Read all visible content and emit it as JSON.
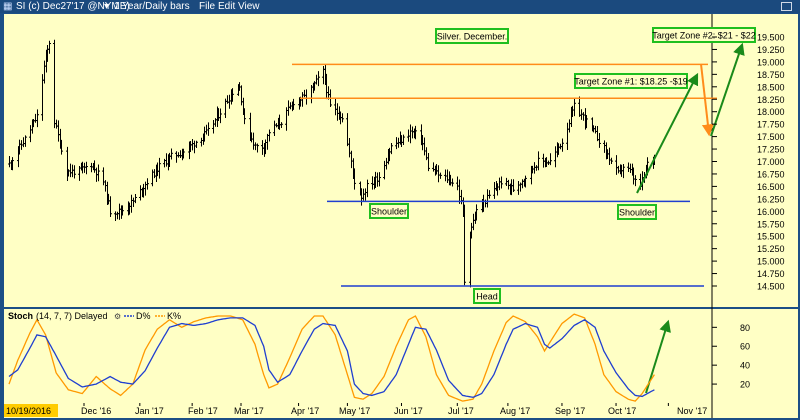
{
  "window": {
    "symbol_icon": "grid-icon",
    "title": "SI  (c) Dec27'17 @NYME)",
    "dropdown_icon": "chevron-down-icon",
    "period": "1 Year/Daily bars",
    "menu": [
      "File",
      "Edit",
      "View"
    ],
    "window_button_icon": "window-restore-icon"
  },
  "colors": {
    "panel_bg": "#ffffc5",
    "frame": "#1c4f86",
    "bars": "#000000",
    "resistance": "#ff8c1a",
    "support": "#1f3fd0",
    "arrow_green": "#1a8a1a",
    "label_border": "#1fbf1f",
    "stoch_d": "#1f3fd0",
    "stoch_k": "#ff9900",
    "date_highlight": "#ffcc00"
  },
  "chart_data": [
    {
      "type": "candlestick",
      "description": "Silver December futures daily bars with head-and-shoulders annotation",
      "y_tick_labels": [
        "14.500",
        "14.750",
        "15.000",
        "15.250",
        "15.500",
        "15.750",
        "16.000",
        "16.250",
        "16.500",
        "16.750",
        "17.000",
        "17.250",
        "17.500",
        "17.750",
        "18.000",
        "18.250",
        "18.500",
        "18.750",
        "19.000",
        "19.250",
        "19.500"
      ],
      "ylim": [
        14.35,
        19.7
      ],
      "x_tick_labels": [
        "10/19/2016",
        "Dec '16",
        "Jan '17",
        "Feb '17",
        "Mar '17",
        "Apr '17",
        "May '17",
        "Jun '17",
        "Jul '17",
        "Aug '17",
        "Sep '17",
        "Oct '17",
        "Nov '17"
      ],
      "anchors": [
        [
          "2016-10-19",
          16.95
        ],
        [
          "2016-10-28",
          17.45
        ],
        [
          "2016-11-04",
          17.9
        ],
        [
          "2016-11-08",
          18.9
        ],
        [
          "2016-11-11",
          19.4
        ],
        [
          "2016-11-14",
          17.8
        ],
        [
          "2016-11-21",
          16.8
        ],
        [
          "2016-11-28",
          16.8
        ],
        [
          "2016-12-05",
          16.95
        ],
        [
          "2016-12-12",
          16.6
        ],
        [
          "2016-12-16",
          16.0
        ],
        [
          "2016-12-22",
          16.0
        ],
        [
          "2016-12-29",
          16.2
        ],
        [
          "2017-01-06",
          16.6
        ],
        [
          "2017-01-13",
          16.9
        ],
        [
          "2017-01-20",
          17.1
        ],
        [
          "2017-01-27",
          17.2
        ],
        [
          "2017-02-03",
          17.4
        ],
        [
          "2017-02-10",
          17.6
        ],
        [
          "2017-02-17",
          18.0
        ],
        [
          "2017-02-24",
          18.4
        ],
        [
          "2017-02-28",
          18.5
        ],
        [
          "2017-03-03",
          17.8
        ],
        [
          "2017-03-09",
          17.3
        ],
        [
          "2017-03-14",
          17.3
        ],
        [
          "2017-03-17",
          17.6
        ],
        [
          "2017-03-24",
          17.8
        ],
        [
          "2017-03-31",
          18.2
        ],
        [
          "2017-04-07",
          18.3
        ],
        [
          "2017-04-13",
          18.6
        ],
        [
          "2017-04-17",
          18.8
        ],
        [
          "2017-04-21",
          18.1
        ],
        [
          "2017-04-28",
          17.9
        ],
        [
          "2017-05-05",
          16.6
        ],
        [
          "2017-05-09",
          16.3
        ],
        [
          "2017-05-12",
          16.5
        ],
        [
          "2017-05-19",
          16.7
        ],
        [
          "2017-05-26",
          17.3
        ],
        [
          "2017-06-02",
          17.45
        ],
        [
          "2017-06-06",
          17.6
        ],
        [
          "2017-06-12",
          17.5
        ],
        [
          "2017-06-16",
          16.9
        ],
        [
          "2017-06-23",
          16.7
        ],
        [
          "2017-06-28",
          16.65
        ],
        [
          "2017-07-03",
          16.5
        ],
        [
          "2017-07-06",
          16.0
        ],
        [
          "2017-07-07",
          14.6
        ],
        [
          "2017-07-10",
          15.6
        ],
        [
          "2017-07-14",
          16.0
        ],
        [
          "2017-07-21",
          16.3
        ],
        [
          "2017-07-28",
          16.6
        ],
        [
          "2017-08-04",
          16.45
        ],
        [
          "2017-08-11",
          16.7
        ],
        [
          "2017-08-18",
          17.0
        ],
        [
          "2017-08-25",
          17.0
        ],
        [
          "2017-09-01",
          17.4
        ],
        [
          "2017-09-08",
          18.1
        ],
        [
          "2017-09-13",
          17.9
        ],
        [
          "2017-09-19",
          17.6
        ],
        [
          "2017-09-26",
          17.2
        ],
        [
          "2017-10-03",
          16.75
        ],
        [
          "2017-10-06",
          16.9
        ],
        [
          "2017-10-10",
          16.8
        ],
        [
          "2017-10-13",
          16.6
        ],
        [
          "2017-10-16",
          16.5
        ],
        [
          "2017-10-20",
          16.95
        ],
        [
          "2017-10-24",
          17.1
        ]
      ],
      "horizontal_lines": [
        {
          "role": "resistance-upper",
          "value": 18.95,
          "color": "orange"
        },
        {
          "role": "resistance-lower",
          "value": 18.27,
          "color": "orange"
        },
        {
          "role": "neckline",
          "value": 16.2,
          "color": "blue"
        },
        {
          "role": "head-low",
          "value": 14.5,
          "color": "blue"
        }
      ],
      "annotations": [
        {
          "text": "Silver. December."
        },
        {
          "text": "Target Zone #2: $21 - $22"
        },
        {
          "text": "Target Zone #1: $18.25 -$19"
        },
        {
          "text": "Shoulder"
        },
        {
          "text": "Head"
        },
        {
          "text": "Shoulder"
        }
      ]
    },
    {
      "type": "line",
      "title": "Stoch",
      "params": "(14, 7, 7) Delayed",
      "params_icon": "settings-icon",
      "series": [
        {
          "name": "D%",
          "color": "blue",
          "anchors": [
            [
              "2016-10-19",
              28
            ],
            [
              "2016-10-24",
              35
            ],
            [
              "2016-10-31",
              58
            ],
            [
              "2016-11-04",
              72
            ],
            [
              "2016-11-09",
              70
            ],
            [
              "2016-11-15",
              50
            ],
            [
              "2016-11-22",
              26
            ],
            [
              "2016-11-30",
              17
            ],
            [
              "2016-12-08",
              20
            ],
            [
              "2016-12-16",
              28
            ],
            [
              "2016-12-22",
              22
            ],
            [
              "2016-12-29",
              20
            ],
            [
              "2017-01-05",
              34
            ],
            [
              "2017-01-12",
              58
            ],
            [
              "2017-01-19",
              80
            ],
            [
              "2017-01-26",
              84
            ],
            [
              "2017-02-02",
              82
            ],
            [
              "2017-02-09",
              84
            ],
            [
              "2017-02-16",
              88
            ],
            [
              "2017-02-23",
              90
            ],
            [
              "2017-03-02",
              90
            ],
            [
              "2017-03-09",
              82
            ],
            [
              "2017-03-14",
              60
            ],
            [
              "2017-03-17",
              35
            ],
            [
              "2017-03-22",
              22
            ],
            [
              "2017-03-29",
              30
            ],
            [
              "2017-04-05",
              55
            ],
            [
              "2017-04-12",
              78
            ],
            [
              "2017-04-17",
              84
            ],
            [
              "2017-04-24",
              82
            ],
            [
              "2017-05-01",
              55
            ],
            [
              "2017-05-05",
              20
            ],
            [
              "2017-05-10",
              10
            ],
            [
              "2017-05-15",
              8
            ],
            [
              "2017-05-22",
              12
            ],
            [
              "2017-05-29",
              30
            ],
            [
              "2017-06-05",
              62
            ],
            [
              "2017-06-09",
              80
            ],
            [
              "2017-06-15",
              78
            ],
            [
              "2017-06-21",
              56
            ],
            [
              "2017-06-28",
              24
            ],
            [
              "2017-07-06",
              8
            ],
            [
              "2017-07-12",
              6
            ],
            [
              "2017-07-17",
              10
            ],
            [
              "2017-07-24",
              30
            ],
            [
              "2017-07-31",
              62
            ],
            [
              "2017-08-04",
              78
            ],
            [
              "2017-08-11",
              84
            ],
            [
              "2017-08-18",
              80
            ],
            [
              "2017-08-22",
              62
            ],
            [
              "2017-08-25",
              58
            ],
            [
              "2017-09-01",
              68
            ],
            [
              "2017-09-08",
              82
            ],
            [
              "2017-09-14",
              88
            ],
            [
              "2017-09-20",
              80
            ],
            [
              "2017-09-25",
              55
            ],
            [
              "2017-10-02",
              32
            ],
            [
              "2017-10-09",
              15
            ],
            [
              "2017-10-13",
              8
            ],
            [
              "2017-10-17",
              7
            ],
            [
              "2017-10-24",
              14
            ]
          ]
        },
        {
          "name": "K%",
          "color": "orange",
          "anchors": [
            [
              "2016-10-19",
              20
            ],
            [
              "2016-10-24",
              45
            ],
            [
              "2016-10-31",
              74
            ],
            [
              "2016-11-04",
              88
            ],
            [
              "2016-11-09",
              72
            ],
            [
              "2016-11-15",
              32
            ],
            [
              "2016-11-22",
              14
            ],
            [
              "2016-11-30",
              10
            ],
            [
              "2016-12-08",
              28
            ],
            [
              "2016-12-16",
              15
            ],
            [
              "2016-12-22",
              8
            ],
            [
              "2016-12-29",
              20
            ],
            [
              "2017-01-05",
              56
            ],
            [
              "2017-01-12",
              78
            ],
            [
              "2017-01-19",
              88
            ],
            [
              "2017-01-26",
              80
            ],
            [
              "2017-02-02",
              86
            ],
            [
              "2017-02-09",
              90
            ],
            [
              "2017-02-16",
              92
            ],
            [
              "2017-02-23",
              92
            ],
            [
              "2017-03-02",
              88
            ],
            [
              "2017-03-09",
              62
            ],
            [
              "2017-03-14",
              30
            ],
            [
              "2017-03-17",
              16
            ],
            [
              "2017-03-22",
              20
            ],
            [
              "2017-03-29",
              48
            ],
            [
              "2017-04-05",
              78
            ],
            [
              "2017-04-12",
              92
            ],
            [
              "2017-04-17",
              92
            ],
            [
              "2017-04-24",
              72
            ],
            [
              "2017-05-01",
              30
            ],
            [
              "2017-05-05",
              6
            ],
            [
              "2017-05-10",
              4
            ],
            [
              "2017-05-15",
              10
            ],
            [
              "2017-05-22",
              28
            ],
            [
              "2017-05-29",
              60
            ],
            [
              "2017-06-05",
              88
            ],
            [
              "2017-06-09",
              92
            ],
            [
              "2017-06-15",
              70
            ],
            [
              "2017-06-21",
              30
            ],
            [
              "2017-06-28",
              8
            ],
            [
              "2017-07-06",
              2
            ],
            [
              "2017-07-12",
              4
            ],
            [
              "2017-07-17",
              20
            ],
            [
              "2017-07-24",
              55
            ],
            [
              "2017-07-31",
              85
            ],
            [
              "2017-08-04",
              92
            ],
            [
              "2017-08-11",
              86
            ],
            [
              "2017-08-18",
              70
            ],
            [
              "2017-08-22",
              55
            ],
            [
              "2017-08-25",
              64
            ],
            [
              "2017-09-01",
              84
            ],
            [
              "2017-09-08",
              94
            ],
            [
              "2017-09-14",
              90
            ],
            [
              "2017-09-20",
              62
            ],
            [
              "2017-09-25",
              30
            ],
            [
              "2017-10-02",
              12
            ],
            [
              "2017-10-09",
              4
            ],
            [
              "2017-10-13",
              2
            ],
            [
              "2017-10-17",
              10
            ],
            [
              "2017-10-24",
              30
            ]
          ]
        }
      ],
      "legend": [
        "D%",
        "K%"
      ],
      "y_tick_labels": [
        "20",
        "40",
        "60",
        "80"
      ],
      "ylim": [
        0,
        100
      ]
    }
  ]
}
